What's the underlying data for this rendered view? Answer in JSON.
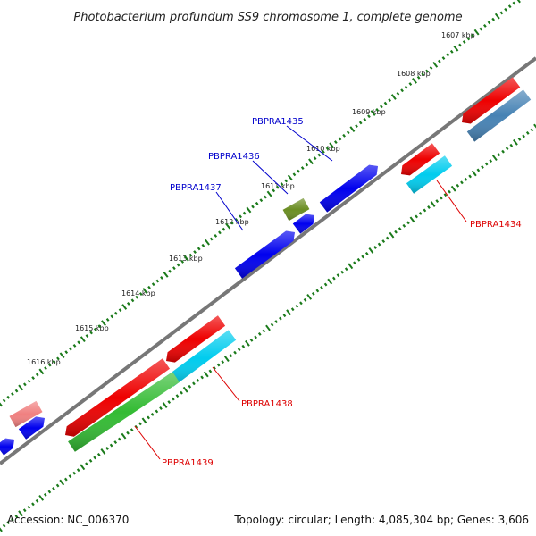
{
  "title": "Photobacterium profundum SS9 chromosome 1, complete genome",
  "footer": {
    "accession": "Accession: NC_006370",
    "summary": "Topology: circular; Length: 4,085,304 bp; Genes: 3,606"
  },
  "kbp_labels": [
    "1607 kbp",
    "1608 kbp",
    "1609 kbp",
    "1610 kbp",
    "1611 kbp",
    "1612 kbp",
    "1613 kbp",
    "1614 kbp",
    "1615 kbp",
    "1616 kbp"
  ],
  "gene_labels": {
    "PBPRA1434": "PBPRA1434",
    "PBPRA1435": "PBPRA1435",
    "PBPRA1436": "PBPRA1436",
    "PBPRA1437": "PBPRA1437",
    "PBPRA1438": "PBPRA1438",
    "PBPRA1439": "PBPRA1439"
  },
  "colors": {
    "backbone": "#777777",
    "ticks": "#1a7a1a",
    "forward_label": "#0000cc",
    "reverse_label": "#dd0000",
    "blue": "#0000ee",
    "red": "#ee0000",
    "cyan": "#00ccee",
    "green": "#33bb33",
    "olive": "#6b8e23",
    "steelblue": "#4682b4",
    "pink": "#f08080"
  }
}
